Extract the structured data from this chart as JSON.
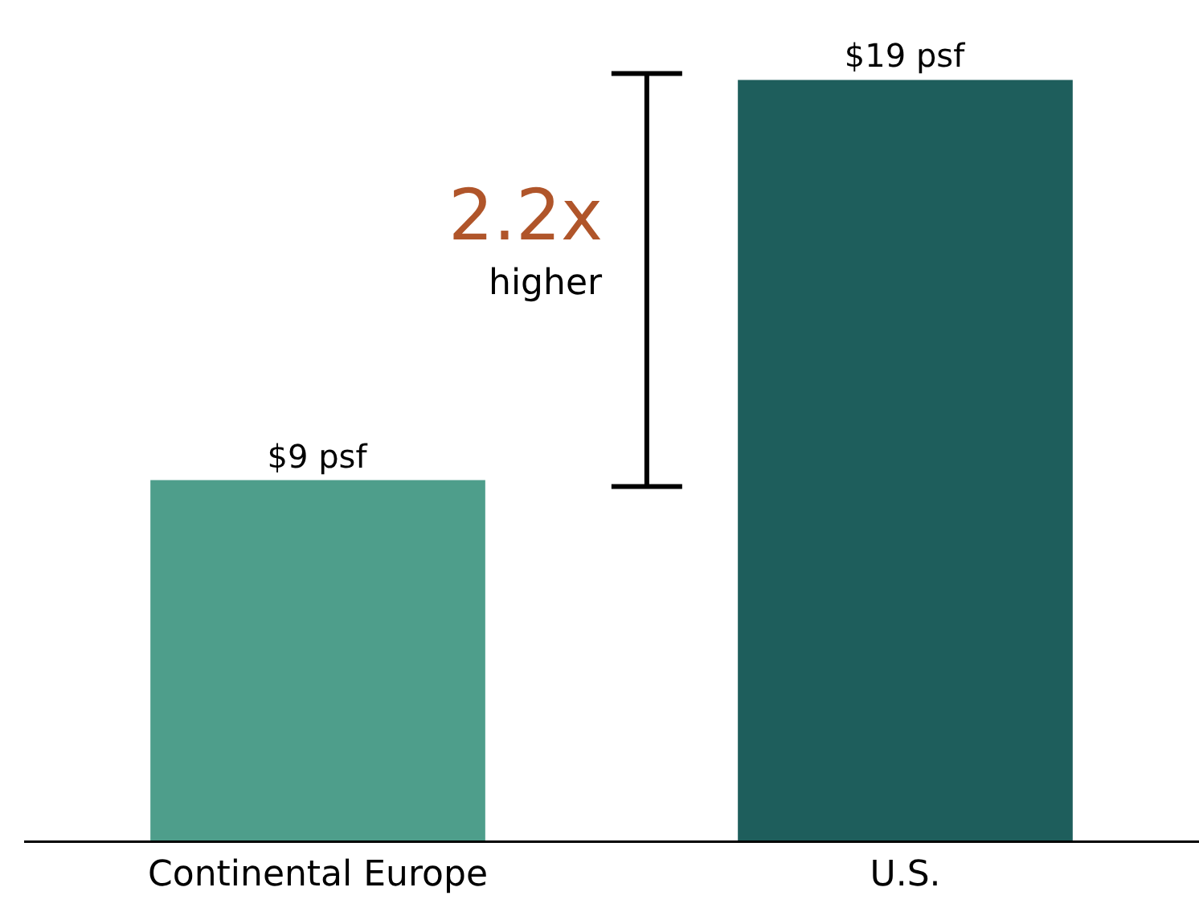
{
  "chart_data": {
    "type": "bar",
    "categories": [
      "Continental Europe",
      "U.S."
    ],
    "values": [
      9,
      19
    ],
    "colors": [
      "#4e9e8b",
      "#1e5e5c"
    ],
    "value_labels": [
      "$9 psf",
      "$19 psf"
    ],
    "annotations": [
      "2.2x",
      "higher"
    ]
  }
}
